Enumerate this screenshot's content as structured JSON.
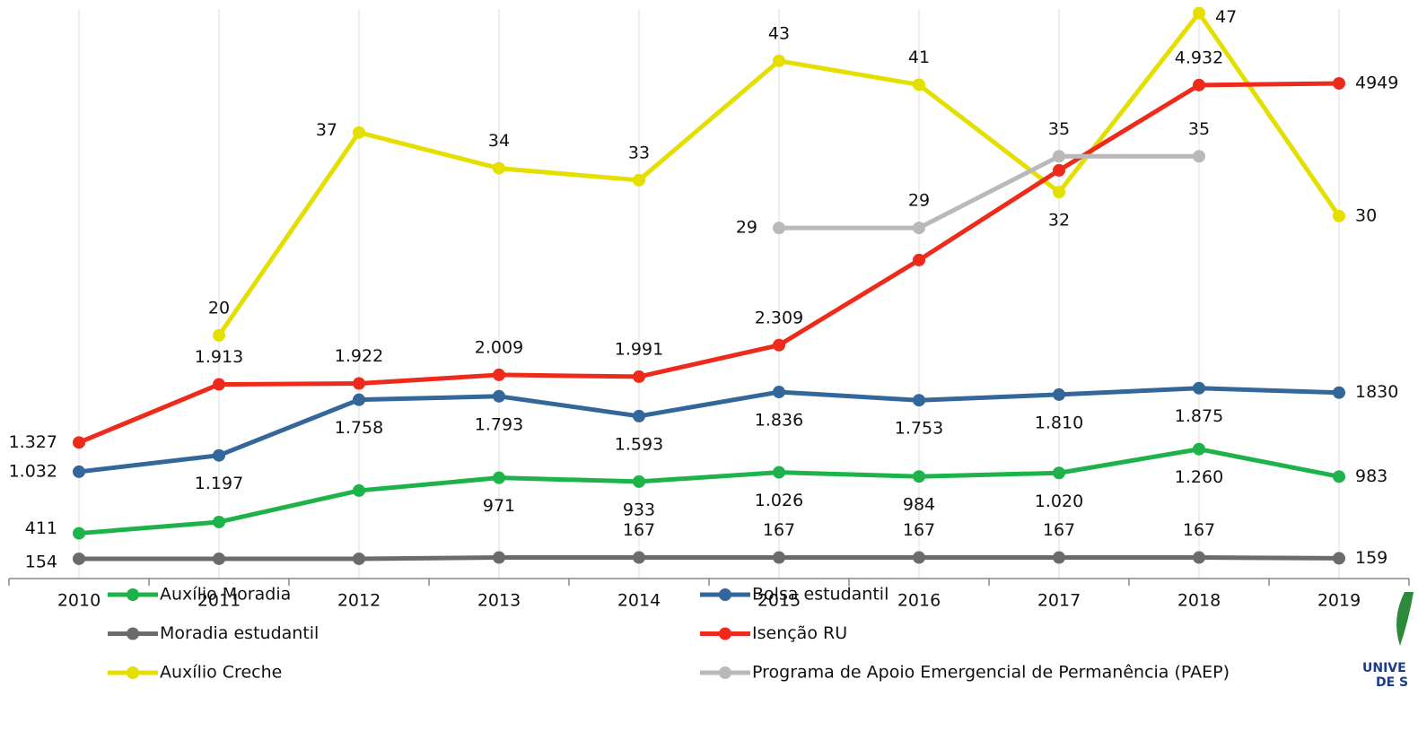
{
  "chart_data": {
    "type": "line",
    "categories": [
      "2010",
      "2011",
      "2012",
      "2013",
      "2014",
      "2015",
      "2016",
      "2017",
      "2018",
      "2019"
    ],
    "ylim": [
      0,
      5790
    ],
    "y2lim": [
      0,
      48.1
    ],
    "series": [
      {
        "name": "Auxílio Moradia",
        "color": "#1db34a",
        "values": [
          411,
          525,
          842,
          971,
          933,
          1026,
          984,
          1020,
          1260,
          983
        ],
        "value_labels": [
          "411",
          null,
          null,
          "971",
          "933",
          "1.026",
          "984",
          "1.020",
          "1.260",
          "983"
        ]
      },
      {
        "name": "Moradia estudantil",
        "color": "#6b6b6b",
        "values": [
          154,
          154,
          154,
          167,
          167,
          167,
          167,
          167,
          167,
          159
        ],
        "value_labels": [
          "154",
          null,
          null,
          null,
          "167",
          "167",
          "167",
          "167",
          "167",
          "159"
        ]
      },
      {
        "name": "Auxílio Creche",
        "color": "#e5df00",
        "axis": "y2",
        "values": [
          null,
          20,
          37,
          34,
          33,
          43,
          41,
          32,
          47,
          30
        ],
        "value_labels": [
          null,
          "20",
          "37",
          "34",
          "33",
          "43",
          "41",
          "32",
          "47",
          "30"
        ]
      },
      {
        "name": "Bolsa estudantil",
        "color": "#336699",
        "values": [
          1032,
          1197,
          1758,
          1793,
          1593,
          1836,
          1753,
          1810,
          1875,
          1830
        ],
        "value_labels": [
          "1.032",
          "1.197",
          "1.758",
          "1.793",
          "1.593",
          "1.836",
          "1.753",
          "1.810",
          "1.875",
          "1830"
        ]
      },
      {
        "name": "Isenção RU",
        "color": "#ee2a1b",
        "values": [
          1327,
          1913,
          1922,
          2009,
          1991,
          2309,
          3167,
          4072,
          4932,
          4949
        ],
        "value_labels": [
          "1.327",
          "1.913",
          "1.922",
          "2.009",
          "1.991",
          "2.309",
          null,
          null,
          "4.932",
          "4949"
        ]
      },
      {
        "name": "Programa de Apoio Emergencial de Permanência (PAEP)",
        "color": "#b9b9b9",
        "axis": "y2",
        "values": [
          null,
          null,
          null,
          null,
          null,
          29,
          29,
          35,
          35,
          null
        ],
        "value_labels": [
          null,
          null,
          null,
          null,
          null,
          "29",
          "29",
          "35",
          "35",
          null
        ]
      }
    ]
  },
  "logo_text": [
    "UNIVE",
    "DE S"
  ]
}
